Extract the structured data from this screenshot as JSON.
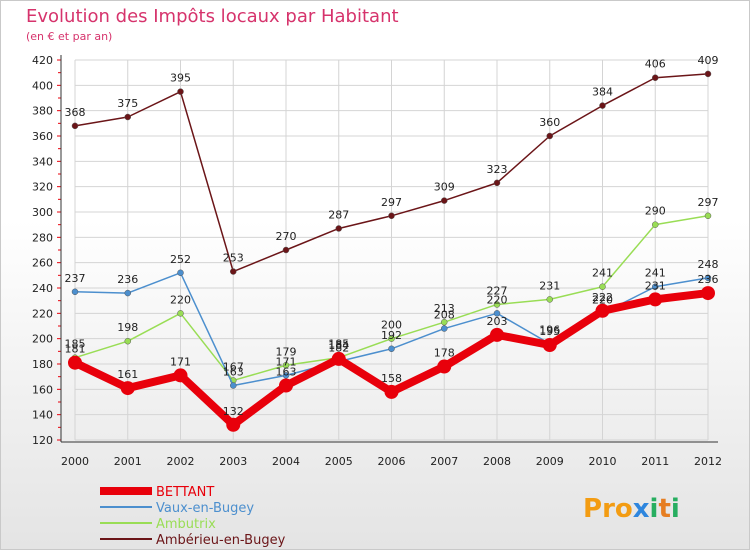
{
  "chart_data": {
    "type": "line",
    "title": "Evolution des Impôts locaux par Habitant",
    "subtitle": "(en € et par an)",
    "x": [
      "2000",
      "2001",
      "2002",
      "2003",
      "2004",
      "2005",
      "2006",
      "2007",
      "2008",
      "2009",
      "2010",
      "2011",
      "2012"
    ],
    "ylim": [
      120,
      420
    ],
    "yticks": [
      120,
      140,
      160,
      180,
      200,
      220,
      240,
      260,
      280,
      300,
      320,
      340,
      360,
      380,
      400,
      420
    ],
    "grid": true,
    "series": [
      {
        "name": "Ambérieu-en-Bugey",
        "color": "#6b1518",
        "values": [
          368,
          375,
          395,
          253,
          270,
          287,
          297,
          309,
          323,
          360,
          384,
          406,
          409
        ]
      },
      {
        "name": "Ambutrix",
        "color": "#99dd55",
        "values": [
          185,
          198,
          220,
          167,
          179,
          185,
          200,
          213,
          227,
          231,
          241,
          290,
          297
        ]
      },
      {
        "name": "Vaux-en-Bugey",
        "color": "#4c8fce",
        "values": [
          237,
          236,
          252,
          163,
          171,
          182,
          192,
          208,
          220,
          196,
          220,
          241,
          248
        ]
      },
      {
        "name": "BETTANT",
        "color": "#e8000b",
        "values": [
          181,
          161,
          171,
          132,
          163,
          184,
          158,
          178,
          203,
          195,
          222,
          231,
          236
        ]
      }
    ],
    "legend": [
      "BETTANT",
      "Vaux-en-Bugey",
      "Ambutrix",
      "Ambérieu-en-Bugey"
    ]
  },
  "brand": {
    "logo_text": "Proxiti",
    "logo_letters": [
      "P",
      "r",
      "o",
      "x",
      "i",
      "t",
      "i"
    ],
    "logo_colors": [
      "#f39c12",
      "#f39c12",
      "#f39c12",
      "#2e86de",
      "#27ae60",
      "#e67e22",
      "#27ae60"
    ]
  }
}
